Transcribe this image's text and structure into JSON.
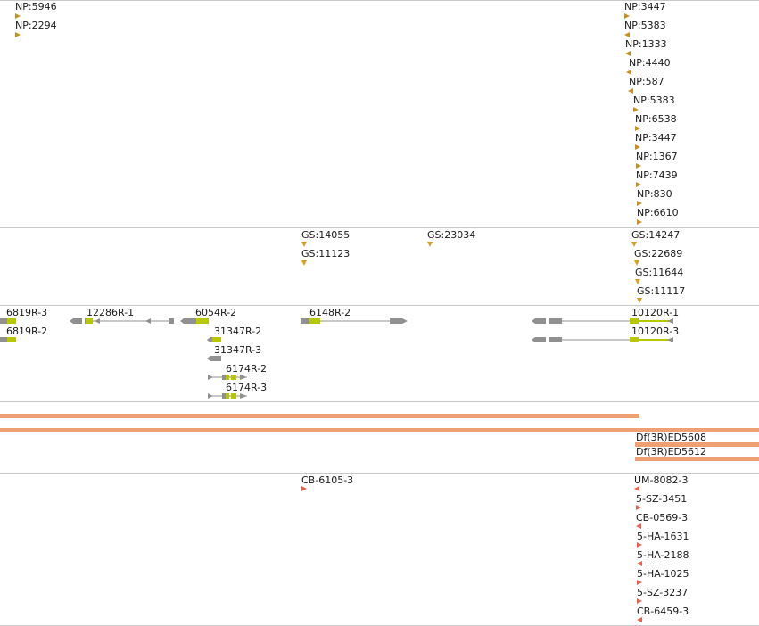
{
  "colors": {
    "np_marker": "#c89020",
    "gs_marker": "#d8a020",
    "cb_marker": "#e86050",
    "gene_gray": "#909090",
    "gene_cds": "#b8c800",
    "deficiency_bar": "#f0a070",
    "border": "#c8c8c8"
  },
  "np_track": {
    "features": [
      {
        "label": "NP:5946",
        "dir": "right"
      },
      {
        "label": "NP:2294",
        "dir": "right"
      },
      {
        "label": "NP:3447",
        "dir": "right"
      },
      {
        "label": "NP:5383",
        "dir": "left"
      },
      {
        "label": "NP:1333",
        "dir": "left"
      },
      {
        "label": "NP:4440",
        "dir": "left"
      },
      {
        "label": "NP:587",
        "dir": "left"
      },
      {
        "label": "NP:5383",
        "dir": "right"
      },
      {
        "label": "NP:6538",
        "dir": "right"
      },
      {
        "label": "NP:3447",
        "dir": "right"
      },
      {
        "label": "NP:1367",
        "dir": "right"
      },
      {
        "label": "NP:7439",
        "dir": "right"
      },
      {
        "label": "NP:830",
        "dir": "right"
      },
      {
        "label": "NP:6610",
        "dir": "right"
      }
    ]
  },
  "gs_track": {
    "features": [
      {
        "label": "GS:14055"
      },
      {
        "label": "GS:11123"
      },
      {
        "label": "GS:23034"
      },
      {
        "label": "GS:14247"
      },
      {
        "label": "GS:22689"
      },
      {
        "label": "GS:11644"
      },
      {
        "label": "GS:11117"
      }
    ]
  },
  "gene_track": {
    "genes": [
      {
        "label": "6819R-3"
      },
      {
        "label": "6819R-2"
      },
      {
        "label": "12286R-1"
      },
      {
        "label": "6054R-2"
      },
      {
        "label": "31347R-2"
      },
      {
        "label": "31347R-3"
      },
      {
        "label": "6174R-2"
      },
      {
        "label": "6174R-3"
      },
      {
        "label": "6148R-2"
      },
      {
        "label": "10120R-1"
      },
      {
        "label": "10120R-3"
      }
    ]
  },
  "deficiency_track": {
    "features": [
      {
        "label": ""
      },
      {
        "label": ""
      },
      {
        "label": "Df(3R)ED5608"
      },
      {
        "label": "Df(3R)ED5612"
      }
    ]
  },
  "cb_track": {
    "features": [
      {
        "label": "CB-6105-3",
        "dir": "right"
      },
      {
        "label": "UM-8082-3",
        "dir": "left"
      },
      {
        "label": "5-SZ-3451",
        "dir": "right"
      },
      {
        "label": "CB-0569-3",
        "dir": "left"
      },
      {
        "label": "5-HA-1631",
        "dir": "right"
      },
      {
        "label": "5-HA-2188",
        "dir": "left"
      },
      {
        "label": "5-HA-1025",
        "dir": "right"
      },
      {
        "label": "5-SZ-3237",
        "dir": "right"
      },
      {
        "label": "CB-6459-3",
        "dir": "left"
      }
    ]
  }
}
